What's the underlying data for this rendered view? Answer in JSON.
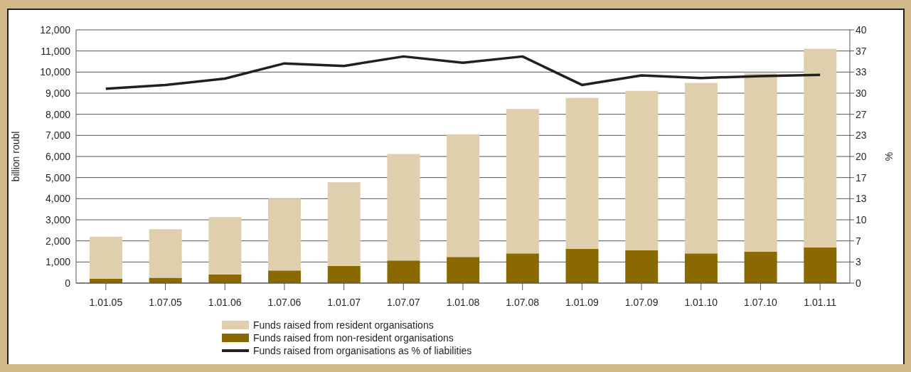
{
  "chart_data": {
    "type": "bar",
    "stacked": true,
    "ylabel": "billion roubl",
    "y2label": "%",
    "categories": [
      "1.01.05",
      "1.07.05",
      "1.01.06",
      "1.07.06",
      "1.01.07",
      "1.07.07",
      "1.01.08",
      "1.07.08",
      "1.01.09",
      "1.07.09",
      "1.01.10",
      "1.07.10",
      "1.01.11"
    ],
    "series": [
      {
        "name": "Funds raised from non-resident organisations",
        "color": "#8a6a00",
        "values": [
          200,
          250,
          410,
          600,
          820,
          1070,
          1240,
          1410,
          1620,
          1550,
          1410,
          1480,
          1690
        ]
      },
      {
        "name": "Funds raised from resident organisations",
        "color": "#e0cfad",
        "values": [
          2000,
          2300,
          2720,
          3400,
          3960,
          5050,
          5810,
          6840,
          7150,
          7560,
          8080,
          8460,
          9420
        ]
      },
      {
        "name": "Funds raised from organisations as % of liabilities",
        "type": "line",
        "axis": "y2",
        "color": "#231f20",
        "values": [
          30.7,
          31.3,
          32.3,
          34.7,
          34.3,
          35.8,
          34.8,
          35.8,
          31.3,
          32.8,
          32.4,
          32.7,
          32.9
        ]
      }
    ],
    "ylim": [
      0,
      12000
    ],
    "yticks": [
      {
        "value": 0,
        "label": "0"
      },
      {
        "value": 1000,
        "label": "1,000"
      },
      {
        "value": 2000,
        "label": "2,000"
      },
      {
        "value": 3000,
        "label": "3,000"
      },
      {
        "value": 4000,
        "label": "4,000"
      },
      {
        "value": 5000,
        "label": "5,000"
      },
      {
        "value": 6000,
        "label": "6,000"
      },
      {
        "value": 7000,
        "label": "7,000"
      },
      {
        "value": 8000,
        "label": "8,000"
      },
      {
        "value": 9000,
        "label": "9,000"
      },
      {
        "value": 10000,
        "label": "10,000"
      },
      {
        "value": 11000,
        "label": "11,000"
      },
      {
        "value": 12000,
        "label": "12,000"
      }
    ],
    "y2lim": [
      0,
      40
    ],
    "y2ticks": [
      0,
      {
        "value": 3.333,
        "label": "3"
      },
      {
        "value": 6.667,
        "label": "7"
      },
      10,
      {
        "value": 13.333,
        "label": "13"
      },
      {
        "value": 16.667,
        "label": "17"
      },
      20,
      {
        "value": 23.333,
        "label": "23"
      },
      {
        "value": 26.667,
        "label": "27"
      },
      30,
      {
        "value": 33.333,
        "label": "33"
      },
      {
        "value": 36.667,
        "label": "37"
      },
      40
    ],
    "grid": "y",
    "legend": "bottom",
    "marker": "none"
  }
}
